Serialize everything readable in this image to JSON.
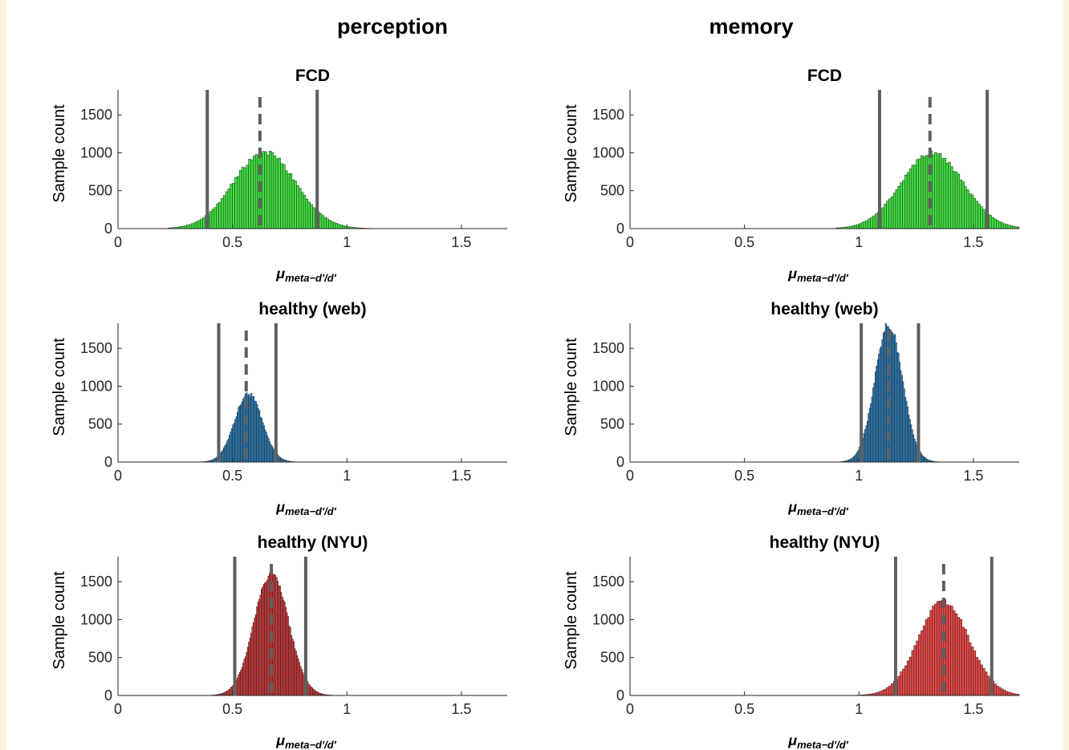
{
  "column_titles": {
    "perception": "perception",
    "memory": "memory"
  },
  "colors": {
    "green": "#44dd44",
    "blue": "#3c8fcb",
    "red": "#e34a4a",
    "lines": "#5f5f5f"
  },
  "chart_data": [
    {
      "type": "bar",
      "subtype": "histogram",
      "title": "FCD",
      "xlabel_main": "μ",
      "xlabel_sub": "meta−d′/d′",
      "ylabel": "Sample count",
      "xlim": [
        0,
        1.7
      ],
      "ylim": [
        0,
        1830
      ],
      "xticks": [
        0,
        0.5,
        1,
        1.5
      ],
      "xtick_labels": [
        "0",
        "0.5",
        "1",
        "1.5"
      ],
      "yticks": [
        0,
        500,
        1000,
        1500
      ],
      "ytick_labels": [
        "0",
        "500",
        "1000",
        "1500"
      ],
      "color": "#44dd44",
      "distribution": {
        "mean": 0.64,
        "sd": 0.135,
        "peak": 1010,
        "xmin": 0.22,
        "xmax": 1.12,
        "bin_width": 0.01
      },
      "lines": {
        "lower_ci": 0.39,
        "mean": 0.62,
        "upper_ci": 0.87
      }
    },
    {
      "type": "bar",
      "subtype": "histogram",
      "title": "FCD",
      "xlabel_main": "μ",
      "xlabel_sub": "meta−d′/d′",
      "ylabel": "Sample count",
      "xlim": [
        0,
        1.7
      ],
      "ylim": [
        0,
        1830
      ],
      "xticks": [
        0,
        0.5,
        1,
        1.5
      ],
      "xtick_labels": [
        "0",
        "0.5",
        "1",
        "1.5"
      ],
      "yticks": [
        0,
        500,
        1000,
        1500
      ],
      "ytick_labels": [
        "0",
        "500",
        "1000",
        "1500"
      ],
      "color": "#44dd44",
      "distribution": {
        "mean": 1.32,
        "sd": 0.135,
        "peak": 1000,
        "xmin": 0.9,
        "xmax": 1.7,
        "bin_width": 0.01
      },
      "lines": {
        "lower_ci": 1.09,
        "mean": 1.31,
        "upper_ci": 1.56
      }
    },
    {
      "type": "bar",
      "subtype": "histogram",
      "title": "healthy (web)",
      "xlabel_main": "μ",
      "xlabel_sub": "meta−d′/d′",
      "ylabel": "Sample count",
      "xlim": [
        0,
        1.7
      ],
      "ylim": [
        0,
        1830
      ],
      "xticks": [
        0,
        0.5,
        1,
        1.5
      ],
      "xtick_labels": [
        "0",
        "0.5",
        "1",
        "1.5"
      ],
      "yticks": [
        0,
        500,
        1000,
        1500
      ],
      "ytick_labels": [
        "0",
        "500",
        "1000",
        "1500"
      ],
      "color": "#3c8fcb",
      "distribution": {
        "mean": 0.57,
        "sd": 0.06,
        "peak": 900,
        "xmin": 0.27,
        "xmax": 0.8,
        "bin_width": 0.005
      },
      "lines": {
        "lower_ci": 0.44,
        "mean": 0.56,
        "upper_ci": 0.69
      }
    },
    {
      "type": "bar",
      "subtype": "histogram",
      "title": "healthy (web)",
      "xlabel_main": "μ",
      "xlabel_sub": "meta−d′/d′",
      "ylabel": "Sample count",
      "xlim": [
        0,
        1.7
      ],
      "ylim": [
        0,
        1830
      ],
      "xticks": [
        0,
        0.5,
        1,
        1.5
      ],
      "xtick_labels": [
        "0",
        "0.5",
        "1",
        "1.5"
      ],
      "yticks": [
        0,
        500,
        1000,
        1500
      ],
      "ytick_labels": [
        "0",
        "500",
        "1000",
        "1500"
      ],
      "color": "#3c8fcb",
      "distribution": {
        "mean": 1.13,
        "sd": 0.06,
        "peak": 1820,
        "xmin": 0.88,
        "xmax": 1.4,
        "bin_width": 0.005
      },
      "lines": {
        "lower_ci": 1.01,
        "mean": 1.13,
        "upper_ci": 1.26
      }
    },
    {
      "type": "bar",
      "subtype": "histogram",
      "title": "healthy (NYU)",
      "xlabel_main": "μ",
      "xlabel_sub": "meta−d′/d′",
      "ylabel": "Sample count",
      "xlim": [
        0,
        1.7
      ],
      "ylim": [
        0,
        1830
      ],
      "xticks": [
        0,
        0.5,
        1,
        1.5
      ],
      "xtick_labels": [
        "0",
        "0.5",
        "1",
        "1.5"
      ],
      "yticks": [
        0,
        500,
        1000,
        1500
      ],
      "ytick_labels": [
        "0",
        "500",
        "1000",
        "1500"
      ],
      "color": "#e34a4a",
      "distribution": {
        "mean": 0.67,
        "sd": 0.075,
        "peak": 1610,
        "xmin": 0.35,
        "xmax": 1.0,
        "bin_width": 0.005
      },
      "lines": {
        "lower_ci": 0.51,
        "mean": 0.67,
        "upper_ci": 0.82
      }
    },
    {
      "type": "bar",
      "subtype": "histogram",
      "title": "healthy (NYU)",
      "xlabel_main": "μ",
      "xlabel_sub": "meta−d′/d′",
      "ylabel": "Sample count",
      "xlim": [
        0,
        1.7
      ],
      "ylim": [
        0,
        1830
      ],
      "xticks": [
        0,
        0.5,
        1,
        1.5
      ],
      "xtick_labels": [
        "0",
        "0.5",
        "1",
        "1.5"
      ],
      "yticks": [
        0,
        500,
        1000,
        1500
      ],
      "ytick_labels": [
        "0",
        "500",
        "1000",
        "1500"
      ],
      "color": "#e34a4a",
      "distribution": {
        "mean": 1.37,
        "sd": 0.11,
        "peak": 1240,
        "xmin": 0.95,
        "xmax": 1.7,
        "bin_width": 0.01
      },
      "lines": {
        "lower_ci": 1.16,
        "mean": 1.37,
        "upper_ci": 1.58
      }
    }
  ]
}
